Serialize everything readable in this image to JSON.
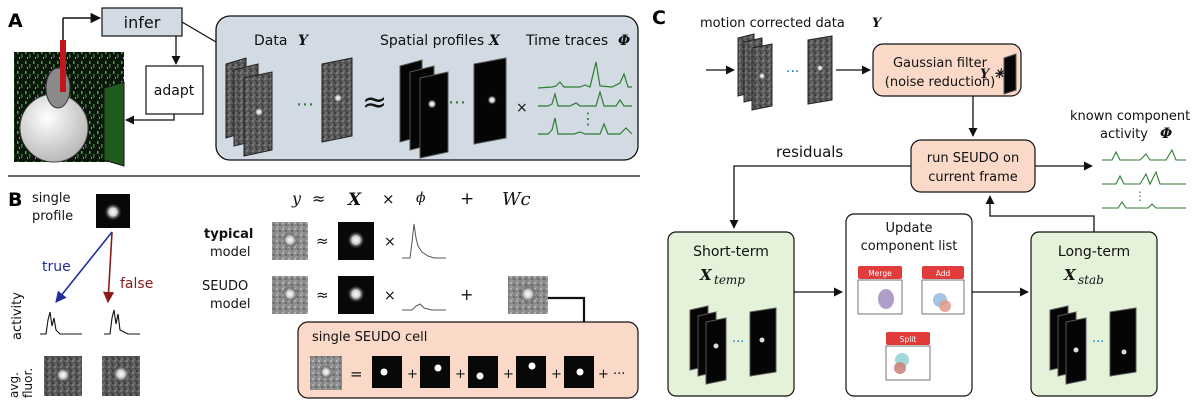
{
  "panels": {
    "a": "A",
    "b": "B",
    "c": "C"
  },
  "panel_a": {
    "infer": "infer",
    "adapt": "adapt",
    "data": "Data",
    "data_sym": "Y",
    "spatial": "Spatial profiles",
    "spatial_sym": "X",
    "time": "Time traces",
    "time_sym": "Φ",
    "approx": "≈",
    "times": "×",
    "dots": "⋯"
  },
  "panel_b": {
    "single_profile_1": "single",
    "single_profile_2": "profile",
    "true": "true",
    "false": "false",
    "activity": "activity",
    "avg_fluor_1": "avg.",
    "avg_fluor_2": "fluor.",
    "eq_y": "y",
    "eq_approx": "≈",
    "eq_x": "X",
    "eq_times": "×",
    "eq_phi": "ϕ",
    "eq_plus": "+",
    "eq_wc": "Wc",
    "typical_1": "typical",
    "typical_2": "model",
    "seudo_1": "SEUDO",
    "seudo_2": "model",
    "seudo_cell": "single SEUDO cell",
    "equals": "=",
    "plus": "+",
    "ellipsis": "+ ···"
  },
  "panel_c": {
    "motion": "motion corrected data",
    "motion_sym": "Y",
    "gauss_1": "Gaussian filter",
    "gauss_2": "(noise reduction)",
    "gauss_sym": "Y ✳",
    "known_1": "known component",
    "known_2": "activity",
    "known_sym": "Φ",
    "residuals": "residuals",
    "run_1": "run SEUDO on",
    "run_2": "current frame",
    "short": "Short-term",
    "short_sym": "X",
    "short_sub": "temp",
    "update_1": "Update",
    "update_2": "component list",
    "long": "Long-term",
    "long_sym": "X",
    "long_sub": "stab",
    "merge": "Merge",
    "add": "Add",
    "split": "Split"
  },
  "colors": {
    "gray_box": "#d2dbe3",
    "peach": "#fbd9c8",
    "green_box": "#e3f2d9",
    "trace_green": "#2e7d32",
    "true_blue": "#1f2f9e",
    "false_red": "#8b1a1a",
    "red_button": "#e23b3b"
  }
}
